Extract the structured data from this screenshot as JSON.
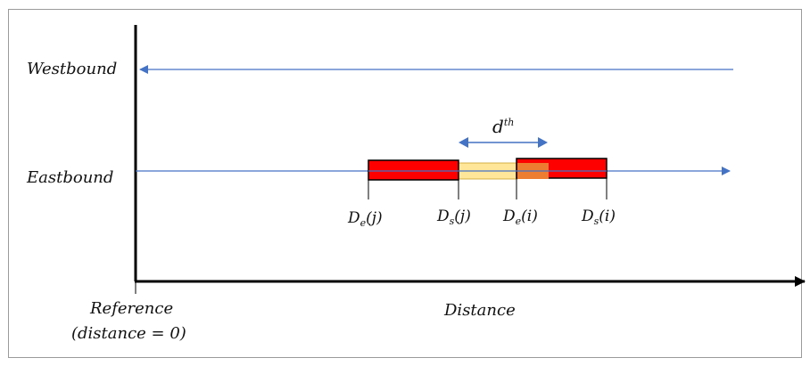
{
  "lanes": {
    "westbound": "Westbound",
    "eastbound": "Eastbound"
  },
  "axis": {
    "x_label": "Distance",
    "reference_line1": "Reference",
    "reference_line2": "(distance = 0)"
  },
  "threshold": {
    "symbol": "d",
    "superscript": "th"
  },
  "markers": [
    {
      "symbol": "D",
      "sub": "e",
      "arg": "(j)"
    },
    {
      "symbol": "D",
      "sub": "s",
      "arg": "(j)"
    },
    {
      "symbol": "D",
      "sub": "e",
      "arg": "(i)"
    },
    {
      "symbol": "D",
      "sub": "s",
      "arg": "(i)"
    }
  ],
  "colors": {
    "lane_line": "#4472c4",
    "vehicle_fill": "#ff0000",
    "overlap_fill": "#ed7d31",
    "gap_fill": "#ffe699",
    "axis": "#000000"
  }
}
